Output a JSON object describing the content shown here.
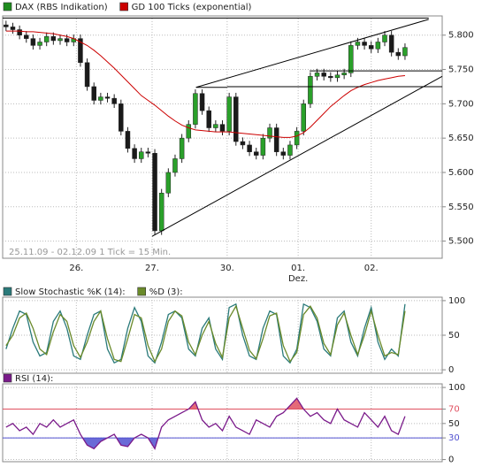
{
  "chart_data": [
    {
      "type": "candlestick",
      "info": "25.11.09 - 02.12.09   1 Tick = 15 Min.",
      "month_label": "Dez.",
      "series": [
        {
          "name": "DAX (RBS Indikation)",
          "color": "#1e8c1e",
          "up_color": "#2aa02a",
          "down_color": "#1a1a1a",
          "open": [
            5815,
            5812,
            5808,
            5800,
            5795,
            5785,
            5790,
            5798,
            5792,
            5795,
            5790,
            5795,
            5760,
            5725,
            5705,
            5710,
            5708,
            5700,
            5660,
            5635,
            5620,
            5630,
            5628,
            5515,
            5570,
            5600,
            5620,
            5650,
            5670,
            5715,
            5690,
            5665,
            5670,
            5660,
            5710,
            5645,
            5640,
            5630,
            5625,
            5650,
            5665,
            5630,
            5625,
            5640,
            5660,
            5700,
            5740,
            5745,
            5740,
            5738,
            5742,
            5745,
            5785,
            5790,
            5785,
            5780,
            5790,
            5800,
            5775,
            5770
          ],
          "high": [
            5821,
            5818,
            5814,
            5806,
            5801,
            5796,
            5804,
            5804,
            5801,
            5801,
            5801,
            5801,
            5766,
            5731,
            5716,
            5716,
            5714,
            5706,
            5666,
            5641,
            5636,
            5636,
            5634,
            5576,
            5606,
            5626,
            5656,
            5676,
            5721,
            5721,
            5696,
            5676,
            5676,
            5716,
            5716,
            5651,
            5646,
            5636,
            5656,
            5671,
            5671,
            5636,
            5646,
            5666,
            5706,
            5746,
            5751,
            5751,
            5746,
            5748,
            5751,
            5791,
            5796,
            5796,
            5791,
            5796,
            5806,
            5806,
            5781,
            5788
          ],
          "low": [
            5806,
            5802,
            5794,
            5789,
            5779,
            5779,
            5784,
            5786,
            5786,
            5784,
            5784,
            5754,
            5719,
            5699,
            5699,
            5702,
            5694,
            5654,
            5629,
            5614,
            5614,
            5622,
            5509,
            5509,
            5564,
            5594,
            5614,
            5644,
            5664,
            5684,
            5659,
            5659,
            5654,
            5654,
            5639,
            5634,
            5624,
            5619,
            5619,
            5644,
            5624,
            5619,
            5619,
            5634,
            5654,
            5694,
            5734,
            5734,
            5732,
            5732,
            5736,
            5739,
            5779,
            5779,
            5774,
            5774,
            5784,
            5769,
            5764,
            5764
          ],
          "close": [
            5812,
            5808,
            5800,
            5795,
            5785,
            5790,
            5798,
            5792,
            5795,
            5790,
            5795,
            5760,
            5725,
            5705,
            5710,
            5708,
            5700,
            5660,
            5635,
            5620,
            5630,
            5628,
            5515,
            5570,
            5600,
            5620,
            5650,
            5670,
            5715,
            5690,
            5665,
            5670,
            5660,
            5710,
            5645,
            5640,
            5630,
            5625,
            5650,
            5665,
            5630,
            5625,
            5640,
            5660,
            5700,
            5740,
            5745,
            5740,
            5738,
            5742,
            5745,
            5785,
            5790,
            5785,
            5780,
            5790,
            5800,
            5775,
            5770,
            5782
          ]
        }
      ],
      "lines": [
        {
          "name": "GD 100 Ticks (exponential)",
          "color": "#cc0000",
          "values": [
            5806,
            5806,
            5806,
            5805,
            5805,
            5804,
            5803,
            5802,
            5800,
            5798,
            5795,
            5790,
            5785,
            5778,
            5770,
            5761,
            5752,
            5742,
            5732,
            5722,
            5712,
            5705,
            5698,
            5690,
            5682,
            5675,
            5669,
            5665,
            5662,
            5661,
            5660,
            5659,
            5659,
            5659,
            5658,
            5657,
            5656,
            5655,
            5654,
            5653,
            5652,
            5651,
            5651,
            5653,
            5658,
            5666,
            5676,
            5686,
            5696,
            5704,
            5712,
            5719,
            5724,
            5728,
            5731,
            5734,
            5736,
            5738,
            5740,
            5741
          ]
        }
      ],
      "trendlines": [
        {
          "x": [
            -0.5,
            62.5
          ],
          "y": [
            5825,
            5825
          ]
        },
        {
          "x": [
            28.1,
            62.5
          ],
          "y": [
            5724,
            5823
          ]
        },
        {
          "x": [
            21.6,
            64.5
          ],
          "y": [
            5507,
            5740
          ]
        },
        {
          "x": [
            28.1,
            32.7
          ],
          "y": [
            5724,
            5724
          ]
        },
        {
          "x": [
            32.7,
            64.5
          ],
          "y": [
            5725,
            5725
          ]
        },
        {
          "x": [
            44.9,
            64.5
          ],
          "y": [
            5748,
            5748
          ]
        }
      ],
      "xlim": [
        -0.5,
        64.5
      ],
      "xticks": [
        {
          "value": 10.4,
          "label": "26."
        },
        {
          "value": 21.6,
          "label": "27."
        },
        {
          "value": 32.7,
          "label": "30."
        },
        {
          "value": 43.2,
          "label": "01."
        },
        {
          "value": 54.0,
          "label": "02."
        }
      ],
      "ylim": [
        5475,
        5828
      ],
      "yticks": [
        {
          "value": 5500,
          "label": "5.500"
        },
        {
          "value": 5550,
          "label": "5.550"
        },
        {
          "value": 5600,
          "label": "5.600"
        },
        {
          "value": 5650,
          "label": "5.650"
        },
        {
          "value": 5700,
          "label": "5.700"
        },
        {
          "value": 5750,
          "label": "5.750"
        },
        {
          "value": 5800,
          "label": "5.800"
        }
      ],
      "grid": true
    },
    {
      "type": "line",
      "series": [
        {
          "name": "Slow Stochastic %K (14):",
          "color": "#2a7a7a",
          "values": [
            30,
            60,
            85,
            80,
            40,
            20,
            25,
            70,
            85,
            60,
            20,
            15,
            50,
            80,
            85,
            30,
            10,
            15,
            60,
            90,
            70,
            20,
            10,
            40,
            80,
            85,
            75,
            30,
            20,
            60,
            75,
            30,
            15,
            90,
            95,
            50,
            20,
            15,
            60,
            85,
            80,
            20,
            10,
            30,
            95,
            90,
            70,
            30,
            20,
            75,
            85,
            40,
            20,
            60,
            90,
            40,
            15,
            30,
            20,
            95
          ]
        },
        {
          "name": "%D (3):",
          "color": "#6a8a2a",
          "values": [
            35,
            50,
            75,
            82,
            60,
            30,
            22,
            55,
            80,
            70,
            35,
            18,
            40,
            70,
            85,
            45,
            15,
            12,
            45,
            80,
            75,
            35,
            12,
            30,
            70,
            85,
            78,
            40,
            22,
            50,
            70,
            38,
            18,
            75,
            92,
            60,
            28,
            16,
            45,
            78,
            82,
            35,
            12,
            25,
            80,
            92,
            75,
            38,
            22,
            65,
            82,
            50,
            22,
            50,
            85,
            50,
            20,
            25,
            22,
            85
          ]
        }
      ],
      "ylim": [
        -5,
        105
      ],
      "yticks": [
        0,
        50,
        100
      ],
      "grid": true
    },
    {
      "type": "line",
      "series": [
        {
          "name": "RSI (14):",
          "color": "#7a1a8a",
          "values": [
            45,
            50,
            40,
            45,
            35,
            50,
            45,
            55,
            45,
            50,
            55,
            35,
            20,
            15,
            25,
            30,
            35,
            20,
            18,
            30,
            35,
            30,
            15,
            45,
            55,
            60,
            65,
            70,
            80,
            55,
            45,
            50,
            40,
            60,
            45,
            40,
            35,
            55,
            50,
            45,
            60,
            65,
            75,
            85,
            70,
            60,
            65,
            55,
            50,
            70,
            55,
            50,
            45,
            65,
            55,
            45,
            60,
            40,
            35,
            60
          ]
        }
      ],
      "reference_lines": [
        {
          "value": 70,
          "color": "#e05060"
        },
        {
          "value": 30,
          "color": "#5050d0"
        }
      ],
      "ylim": [
        -3,
        105
      ],
      "yticks": [
        0,
        30,
        50,
        70,
        100
      ],
      "grid": true
    }
  ]
}
